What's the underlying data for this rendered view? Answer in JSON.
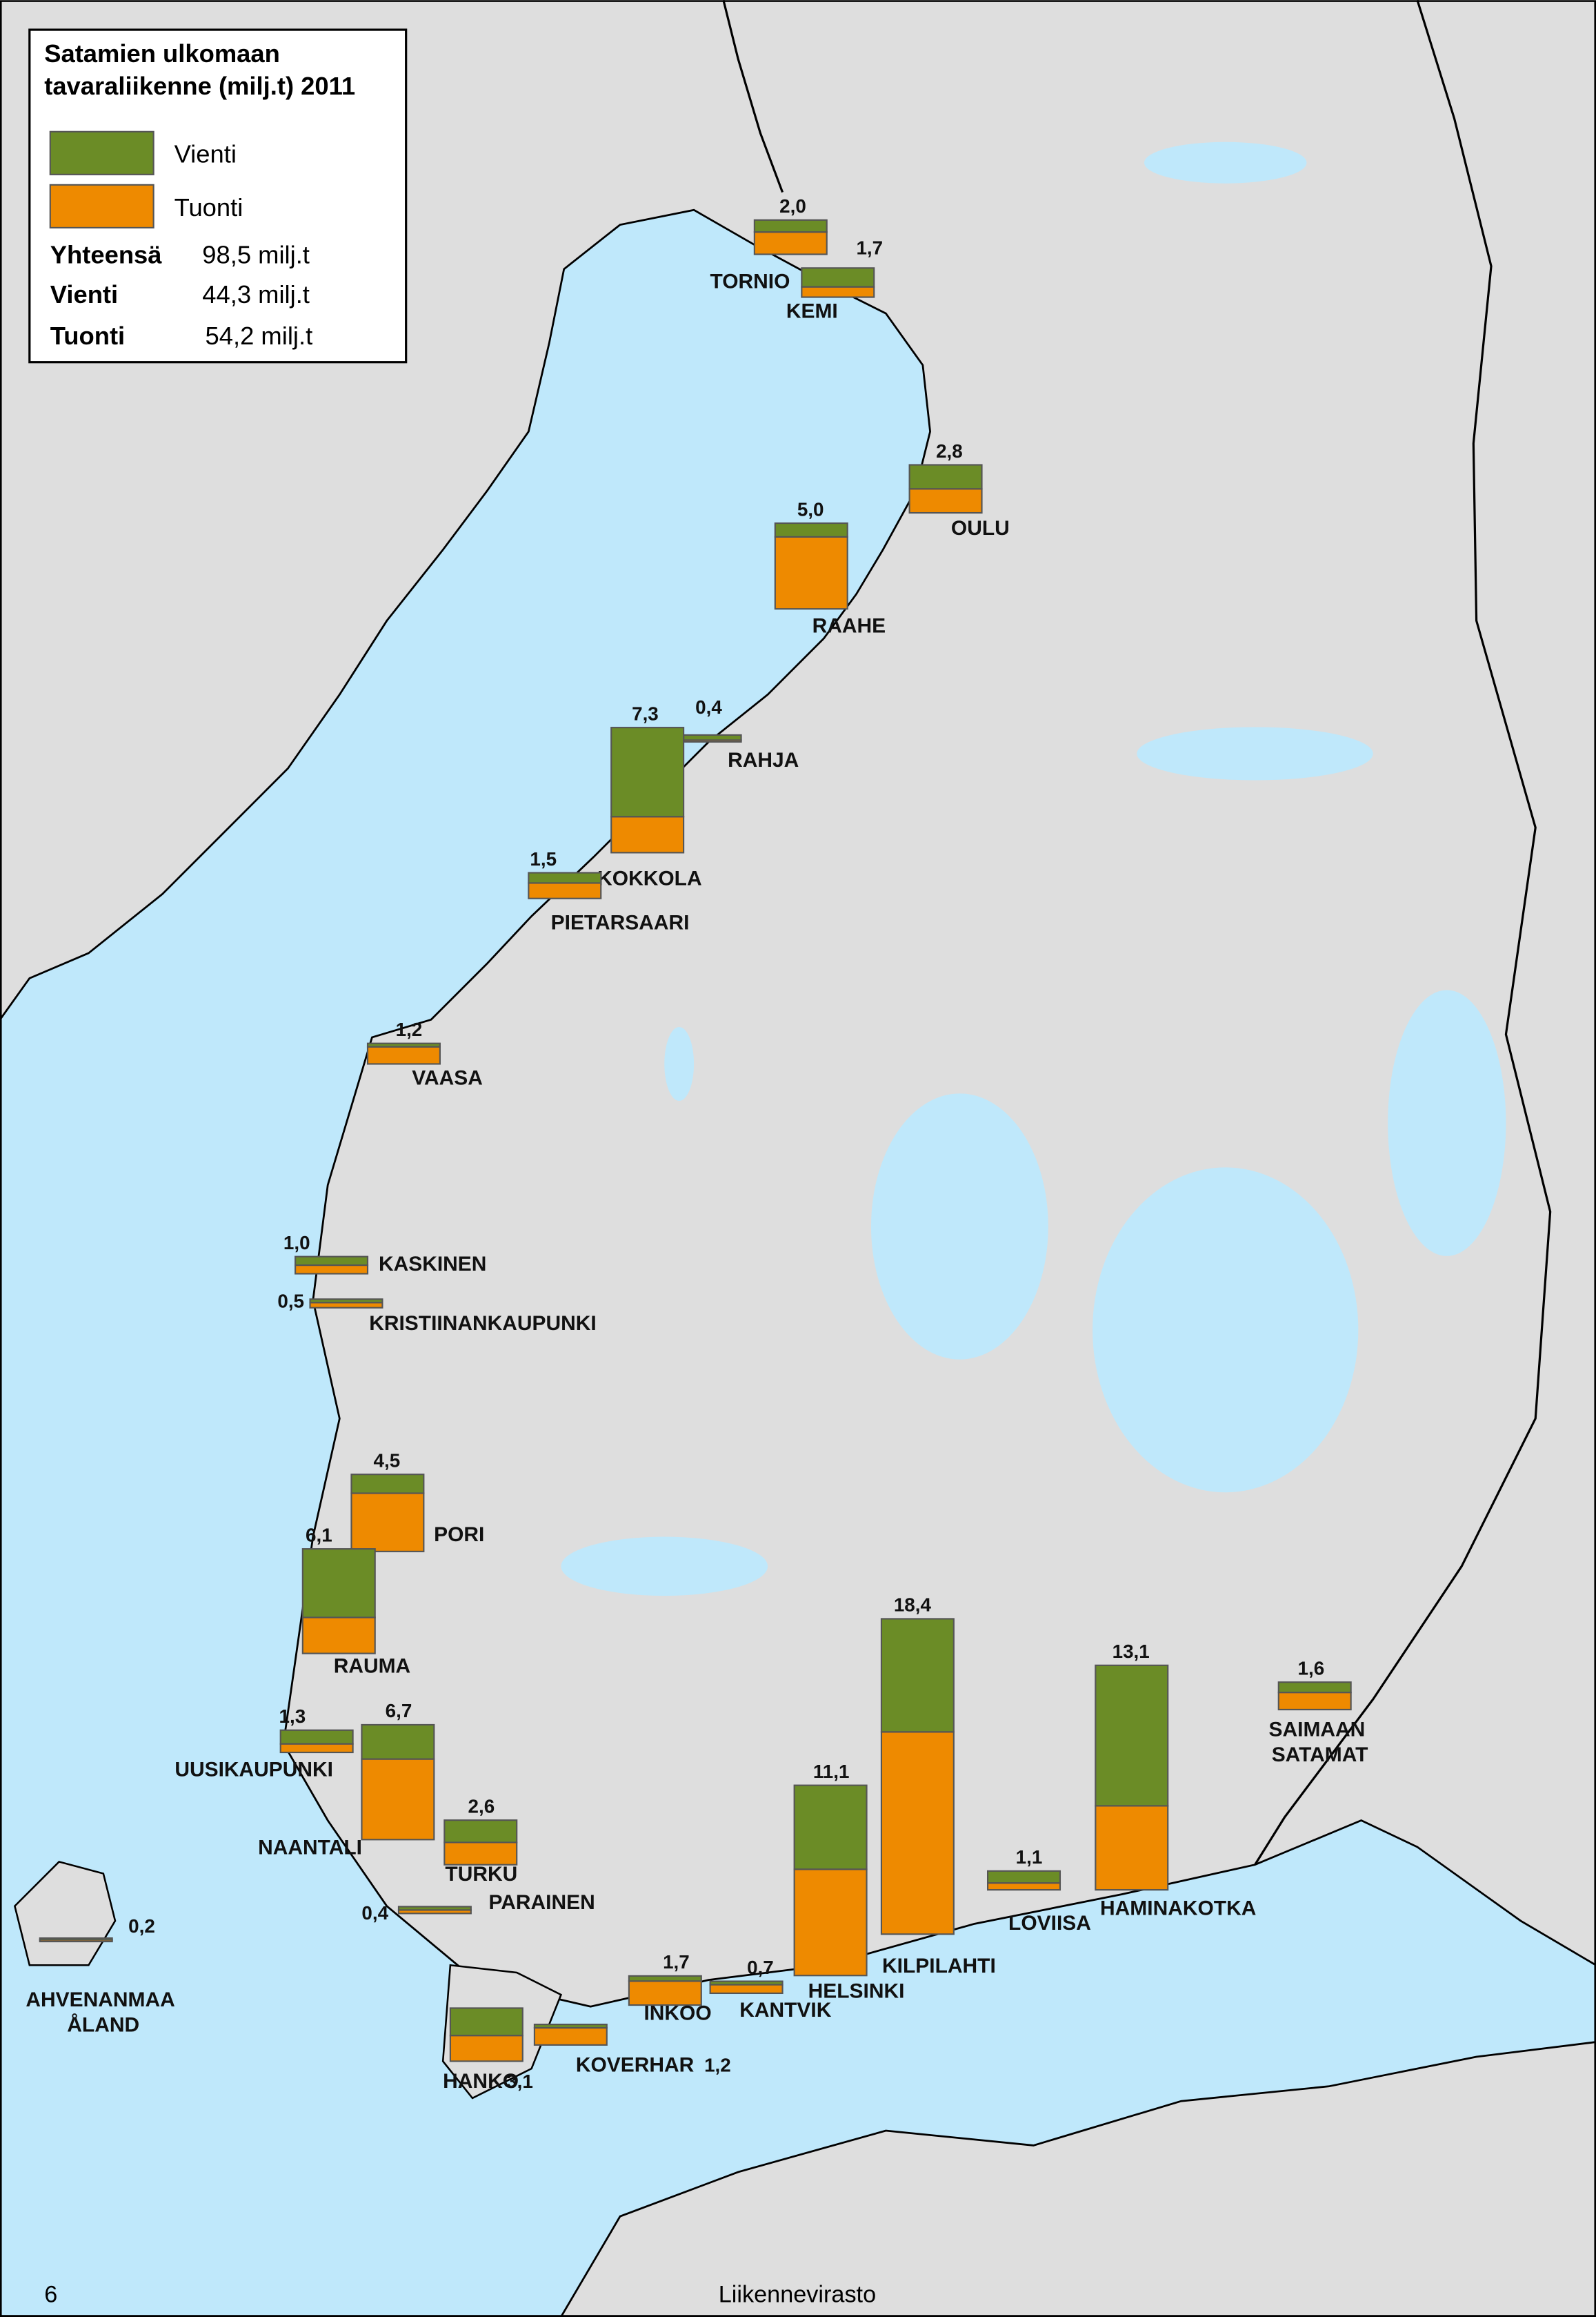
{
  "title_lines": [
    "Satamien ulkomaan",
    "tavaraliikenne (milj.t) 2011"
  ],
  "summary": [
    {
      "label": "Yhteensä",
      "value": "98,5 milj.t"
    },
    {
      "label": "Vienti",
      "value": "44,3 milj.t"
    },
    {
      "label": "Tuonti",
      "value": "54,2 milj.t"
    }
  ],
  "footer": {
    "page": "6",
    "source": "Liikennevirasto"
  },
  "chart_data": {
    "type": "stacked-bar-map",
    "categories": [
      "TORNIO",
      "KEMI",
      "OULU",
      "RAAHE",
      "RAHJA",
      "KOKKOLA",
      "PIETARSAARI",
      "VAASA",
      "KASKINEN",
      "KRISTIINANKAUPUNKI",
      "PORI",
      "RAUMA",
      "UUSIKAUPUNKI",
      "NAANTALI",
      "TURKU",
      "PARAINEN",
      "AHVENANMAA ÅLAND",
      "HANKO",
      "KOVERHAR",
      "INKOO",
      "KANTVIK",
      "HELSINKI",
      "KILPILAHTI",
      "LOVIISA",
      "HAMINAKOTKA",
      "SAIMAAN SATAMAT"
    ],
    "series": [
      {
        "name": "Vienti",
        "color": "#6b8c26",
        "values": [
          0.7,
          1.1,
          1.4,
          0.8,
          0.3,
          5.2,
          0.6,
          0.2,
          0.5,
          0.2,
          1.1,
          4.0,
          0.8,
          2.0,
          1.3,
          0.2,
          0.1,
          1.6,
          0.2,
          0.3,
          0.2,
          4.9,
          6.6,
          0.7,
          8.2,
          0.6
        ]
      },
      {
        "name": "Tuonti",
        "color": "#ee8a00",
        "values": [
          1.3,
          0.6,
          1.4,
          4.2,
          0.1,
          2.1,
          0.9,
          1.0,
          0.5,
          0.3,
          3.4,
          2.1,
          0.5,
          4.7,
          1.3,
          0.2,
          0.1,
          1.5,
          1.0,
          1.4,
          0.5,
          6.2,
          11.8,
          0.4,
          4.9,
          1.0
        ]
      }
    ],
    "totals": {
      "values": [
        2.0,
        1.7,
        2.8,
        5.0,
        0.4,
        7.3,
        1.5,
        1.2,
        1.0,
        0.5,
        4.5,
        6.1,
        1.3,
        6.7,
        2.6,
        0.4,
        0.2,
        3.1,
        1.2,
        1.7,
        0.7,
        11.1,
        18.4,
        1.1,
        13.1,
        1.6
      ],
      "value_labels": [
        "2,0",
        "1,7",
        "2,8",
        "5,0",
        "0,4",
        "7,3",
        "1,5",
        "1,2",
        "1,0",
        "0,5",
        "4,5",
        "6,1",
        "1,3",
        "6,7",
        "2,6",
        "0,4",
        "0,2",
        "3,1",
        "1,2",
        "1,7",
        "0,7",
        "11,1",
        "18,4",
        "1,1",
        "13,1",
        "1,6"
      ]
    }
  }
}
